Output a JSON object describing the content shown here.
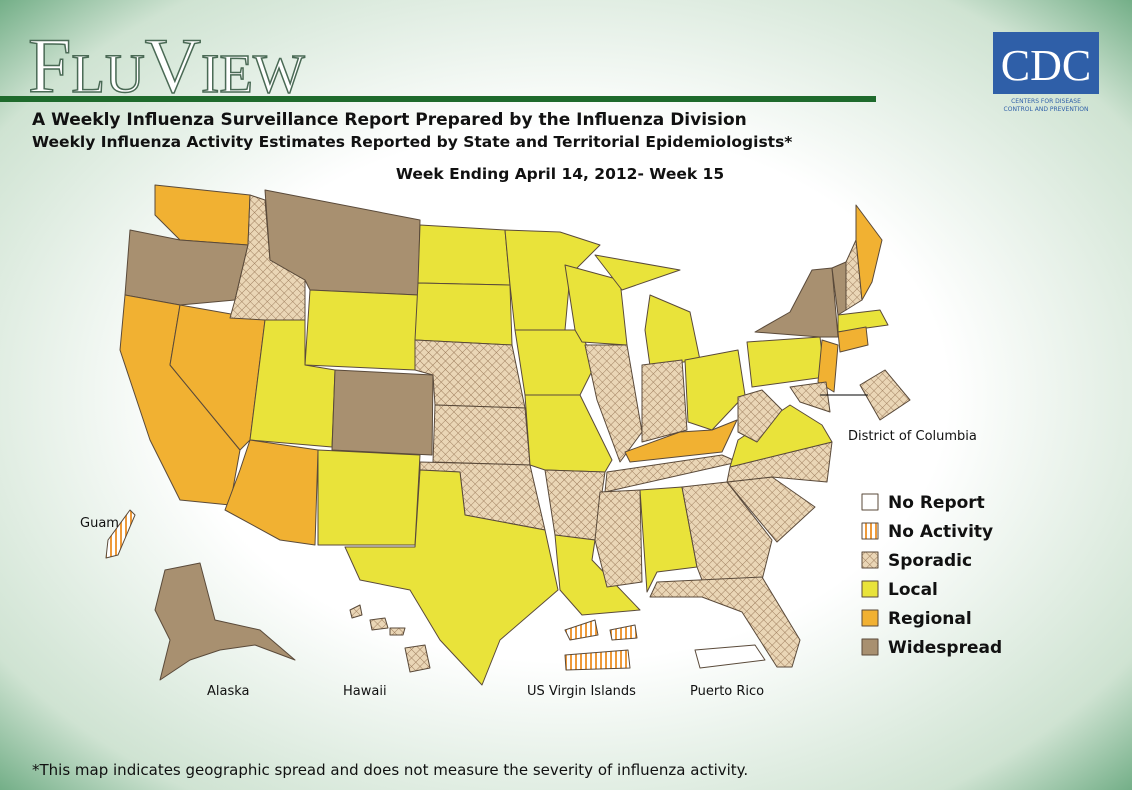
{
  "header": {
    "title": "FluView",
    "subtitle": "A Weekly Influenza Surveillance Report Prepared by the Influenza Division",
    "subtitle2": "Weekly Influenza Activity Estimates Reported by State and Territorial Epidemiologists*",
    "week": "Week Ending April 14, 2012- Week 15"
  },
  "logo": {
    "text": "CDC",
    "line1": "CENTERS FOR DISEASE",
    "line2": "CONTROL AND PREVENTION"
  },
  "map_labels": {
    "dc": "District of Columbia",
    "guam": "Guam",
    "alaska": "Alaska",
    "hawaii": "Hawaii",
    "usvi": "US Virgin Islands",
    "pr": "Puerto Rico"
  },
  "legend": [
    "No Report",
    "No Activity",
    "Sporadic",
    "Local",
    "Regional",
    "Widespread"
  ],
  "footnote": "*This map indicates geographic spread and does not measure the severity of influenza activity."
}
